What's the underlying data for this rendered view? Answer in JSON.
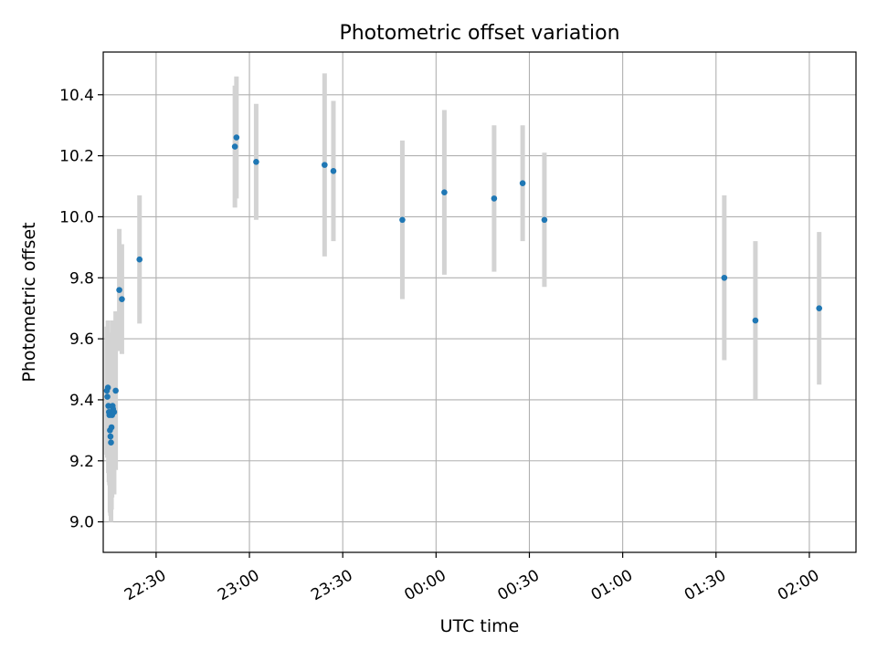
{
  "chart_data": {
    "type": "scatter",
    "title": "Photometric offset variation",
    "xlabel": "UTC time",
    "ylabel": "Photometric offset",
    "xlim": [
      "22:13",
      "02:15"
    ],
    "ylim": [
      8.9,
      10.54
    ],
    "grid": true,
    "x_ticks": [
      "22:30",
      "23:00",
      "23:30",
      "00:00",
      "00:30",
      "01:00",
      "01:30",
      "02:00"
    ],
    "y_ticks": [
      "9.0",
      "9.2",
      "9.4",
      "9.6",
      "9.8",
      "10.0",
      "10.2",
      "10.4"
    ],
    "marker_color": "#1f77b4",
    "errorbar_color": "#d3d3d3",
    "points": [
      {
        "time": "22:14:10",
        "y": 9.43,
        "err": 0.21
      },
      {
        "time": "22:14:20",
        "y": 9.41,
        "err": 0.2
      },
      {
        "time": "22:14:30",
        "y": 9.44,
        "err": 0.22
      },
      {
        "time": "22:14:40",
        "y": 9.38,
        "err": 0.22
      },
      {
        "time": "22:14:50",
        "y": 9.36,
        "err": 0.23
      },
      {
        "time": "22:15:00",
        "y": 9.35,
        "err": 0.23
      },
      {
        "time": "22:15:10",
        "y": 9.3,
        "err": 0.27
      },
      {
        "time": "22:15:20",
        "y": 9.28,
        "err": 0.26
      },
      {
        "time": "22:15:30",
        "y": 9.26,
        "err": 0.26
      },
      {
        "time": "22:15:40",
        "y": 9.31,
        "err": 0.27
      },
      {
        "time": "22:15:50",
        "y": 9.35,
        "err": 0.27
      },
      {
        "time": "22:16:00",
        "y": 9.38,
        "err": 0.28
      },
      {
        "time": "22:16:10",
        "y": 9.37,
        "err": 0.28
      },
      {
        "time": "22:16:30",
        "y": 9.36,
        "err": 0.27
      },
      {
        "time": "22:17:00",
        "y": 9.43,
        "err": 0.26
      },
      {
        "time": "22:18:10",
        "y": 9.76,
        "err": 0.2
      },
      {
        "time": "22:19:00",
        "y": 9.73,
        "err": 0.18
      },
      {
        "time": "22:24:40",
        "y": 9.86,
        "err": 0.21
      },
      {
        "time": "22:55:20",
        "y": 10.23,
        "err": 0.2
      },
      {
        "time": "22:55:50",
        "y": 10.26,
        "err": 0.2
      },
      {
        "time": "23:02:10",
        "y": 10.18,
        "err": 0.19
      },
      {
        "time": "23:24:10",
        "y": 10.17,
        "err": 0.3
      },
      {
        "time": "23:27:00",
        "y": 10.15,
        "err": 0.23
      },
      {
        "time": "23:49:10",
        "y": 9.99,
        "err": 0.26
      },
      {
        "time": "00:02:40",
        "y": 10.08,
        "err": 0.27
      },
      {
        "time": "00:18:40",
        "y": 10.06,
        "err": 0.24
      },
      {
        "time": "00:27:50",
        "y": 10.11,
        "err": 0.19
      },
      {
        "time": "00:34:50",
        "y": 9.99,
        "err": 0.22
      },
      {
        "time": "01:32:40",
        "y": 9.8,
        "err": 0.27
      },
      {
        "time": "01:42:40",
        "y": 9.66,
        "err": 0.26
      },
      {
        "time": "02:03:10",
        "y": 9.7,
        "err": 0.25
      }
    ]
  }
}
